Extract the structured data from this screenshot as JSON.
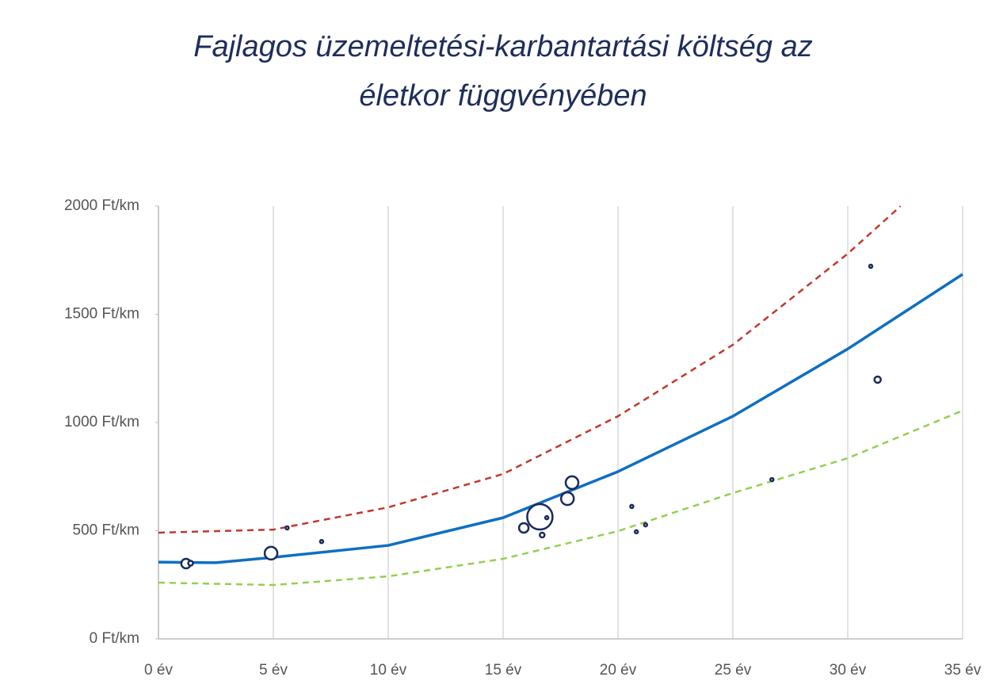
{
  "chart_data": {
    "type": "scatter",
    "title": "Fajlagos üzemeltetési-karbantartási költség az életkor függvényében",
    "xlim": [
      0,
      35
    ],
    "ylim": [
      0,
      2000
    ],
    "xticks": [
      {
        "value": 0,
        "label": "0 év"
      },
      {
        "value": 5,
        "label": "5 év"
      },
      {
        "value": 10,
        "label": "10 év"
      },
      {
        "value": 15,
        "label": "15 év"
      },
      {
        "value": 20,
        "label": "20 év"
      },
      {
        "value": 25,
        "label": "25 év"
      },
      {
        "value": 30,
        "label": "30 év"
      },
      {
        "value": 35,
        "label": "35 év"
      }
    ],
    "yticks": [
      {
        "value": 0,
        "label": "0 Ft/km"
      },
      {
        "value": 500,
        "label": "500 Ft/km"
      },
      {
        "value": 1000,
        "label": "1000 Ft/km"
      },
      {
        "value": 1500,
        "label": "1500 Ft/km"
      },
      {
        "value": 2000,
        "label": "2000 Ft/km"
      }
    ],
    "grid": true,
    "series": [
      {
        "type": "line",
        "color": "#c0392b",
        "dashed": true,
        "x": [
          0,
          5,
          10,
          15,
          20,
          25,
          30,
          32.3
        ],
        "values": [
          491,
          505,
          608,
          762,
          1029,
          1359,
          1780,
          2000
        ]
      },
      {
        "type": "line",
        "color": "#92d050",
        "dashed": true,
        "x": [
          0,
          5,
          10,
          15,
          20,
          25,
          30,
          35
        ],
        "values": [
          260,
          249,
          289,
          370,
          498,
          674,
          835,
          1055
        ]
      },
      {
        "type": "line",
        "color": "#0f6fc1",
        "dashed": false,
        "x": [
          0,
          2.5,
          5,
          10,
          15,
          20,
          25,
          30,
          35
        ],
        "values": [
          355,
          352,
          377,
          432,
          560,
          773,
          1029,
          1340,
          1685
        ]
      },
      {
        "type": "bubble",
        "color": "#1a2a5c",
        "x": [
          1.2,
          1.4,
          4.9,
          5.6,
          7.1,
          15.9,
          16.6,
          16.7,
          16.9,
          17.8,
          18.0,
          20.6,
          20.8,
          21.2,
          26.7,
          31.0,
          31.3
        ],
        "values": [
          348,
          350,
          396,
          513,
          450,
          513,
          564,
          480,
          560,
          648,
          722,
          612,
          495,
          527,
          736,
          1722,
          1198
        ],
        "sizes": [
          6,
          3,
          8,
          2,
          2,
          6,
          16,
          3,
          2,
          8,
          8,
          2,
          2,
          2,
          2,
          2,
          4
        ]
      }
    ]
  }
}
